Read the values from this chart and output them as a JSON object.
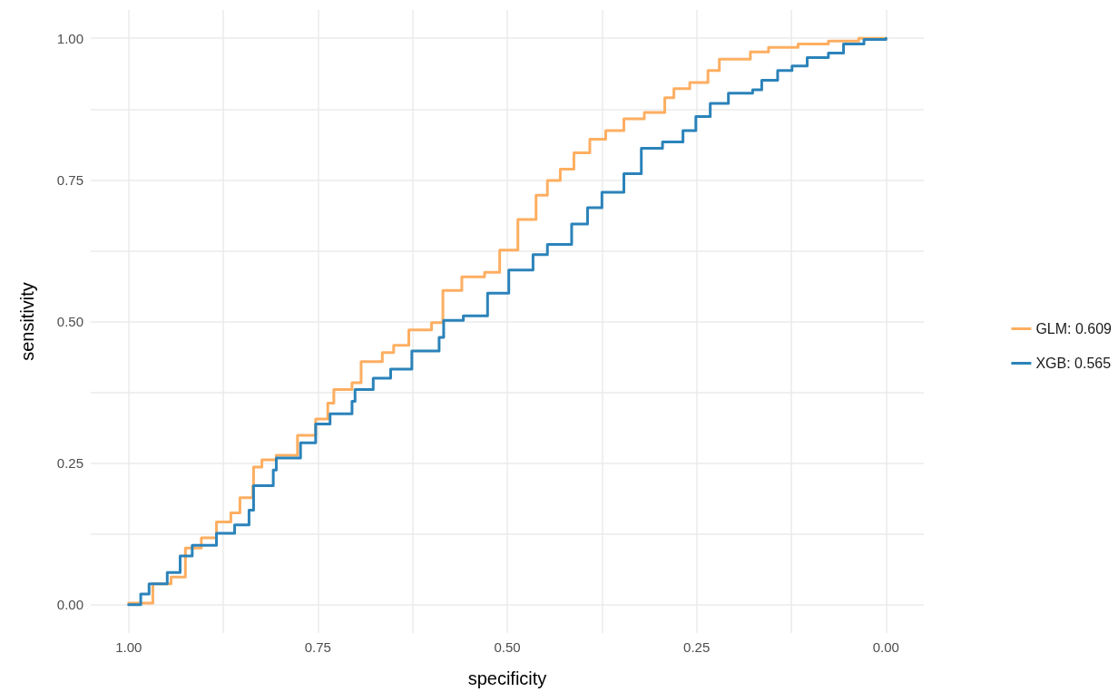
{
  "chart_data": {
    "type": "step",
    "xlabel": "specificity",
    "ylabel": "sensitivity",
    "xlim": [
      1.05,
      -0.05
    ],
    "ylim": [
      -0.05,
      1.05
    ],
    "xticks": [
      {
        "value": 1,
        "label": "1.00"
      },
      {
        "value": 0.875,
        "label": null
      },
      {
        "value": 0.75,
        "label": "0.75"
      },
      {
        "value": 0.625,
        "label": null
      },
      {
        "value": 0.5,
        "label": "0.50"
      },
      {
        "value": 0.375,
        "label": null
      },
      {
        "value": 0.25,
        "label": "0.25"
      },
      {
        "value": 0.125,
        "label": null
      },
      {
        "value": 0,
        "label": "0.00"
      }
    ],
    "yticks": [
      {
        "value": 0,
        "label": "0.00"
      },
      {
        "value": 0.125,
        "label": null
      },
      {
        "value": 0.25,
        "label": "0.25"
      },
      {
        "value": 0.375,
        "label": null
      },
      {
        "value": 0.5,
        "label": "0.50"
      },
      {
        "value": 0.625,
        "label": null
      },
      {
        "value": 0.75,
        "label": "0.75"
      },
      {
        "value": 0.875,
        "label": null
      },
      {
        "value": 1,
        "label": "1.00"
      }
    ],
    "grid": true,
    "legend": "right",
    "marker": "none",
    "line_style": "solid",
    "series": [
      {
        "name": "GLM: 0.609",
        "color": "#fdae61",
        "x": [
          1.0,
          0.968,
          0.944,
          0.925,
          0.904,
          0.884,
          0.865,
          0.853,
          0.836,
          0.835,
          0.824,
          0.805,
          0.777,
          0.753,
          0.737,
          0.729,
          0.705,
          0.693,
          0.665,
          0.65,
          0.63,
          0.6,
          0.585,
          0.56,
          0.53,
          0.51,
          0.486,
          0.462,
          0.447,
          0.43,
          0.412,
          0.391,
          0.37,
          0.346,
          0.319,
          0.292,
          0.28,
          0.259,
          0.235,
          0.22,
          0.179,
          0.155,
          0.116,
          0.076,
          0.036,
          0.0
        ],
        "values": [
          0.003,
          0.037,
          0.049,
          0.1,
          0.118,
          0.146,
          0.162,
          0.189,
          0.21,
          0.243,
          0.256,
          0.264,
          0.299,
          0.328,
          0.356,
          0.38,
          0.392,
          0.429,
          0.445,
          0.458,
          0.485,
          0.498,
          0.555,
          0.579,
          0.587,
          0.626,
          0.68,
          0.723,
          0.749,
          0.769,
          0.798,
          0.822,
          0.837,
          0.858,
          0.869,
          0.895,
          0.911,
          0.922,
          0.943,
          0.963,
          0.976,
          0.984,
          0.99,
          0.995,
          1.0,
          1.0
        ]
      },
      {
        "name": "XGB: 0.565",
        "color": "#2b83ba",
        "x": [
          1.0,
          0.984,
          0.973,
          0.949,
          0.932,
          0.916,
          0.884,
          0.86,
          0.841,
          0.835,
          0.809,
          0.805,
          0.773,
          0.753,
          0.734,
          0.705,
          0.701,
          0.677,
          0.654,
          0.626,
          0.59,
          0.584,
          0.558,
          0.526,
          0.498,
          0.466,
          0.447,
          0.415,
          0.394,
          0.375,
          0.346,
          0.323,
          0.295,
          0.268,
          0.251,
          0.232,
          0.208,
          0.176,
          0.164,
          0.143,
          0.124,
          0.104,
          0.076,
          0.056,
          0.029,
          0.0
        ],
        "values": [
          0.0,
          0.019,
          0.037,
          0.057,
          0.086,
          0.105,
          0.126,
          0.141,
          0.167,
          0.21,
          0.238,
          0.259,
          0.286,
          0.319,
          0.337,
          0.359,
          0.38,
          0.4,
          0.416,
          0.448,
          0.472,
          0.502,
          0.51,
          0.55,
          0.591,
          0.618,
          0.636,
          0.672,
          0.701,
          0.728,
          0.761,
          0.806,
          0.817,
          0.837,
          0.862,
          0.885,
          0.903,
          0.909,
          0.926,
          0.943,
          0.951,
          0.966,
          0.974,
          0.99,
          0.998,
          1.0
        ]
      }
    ]
  }
}
